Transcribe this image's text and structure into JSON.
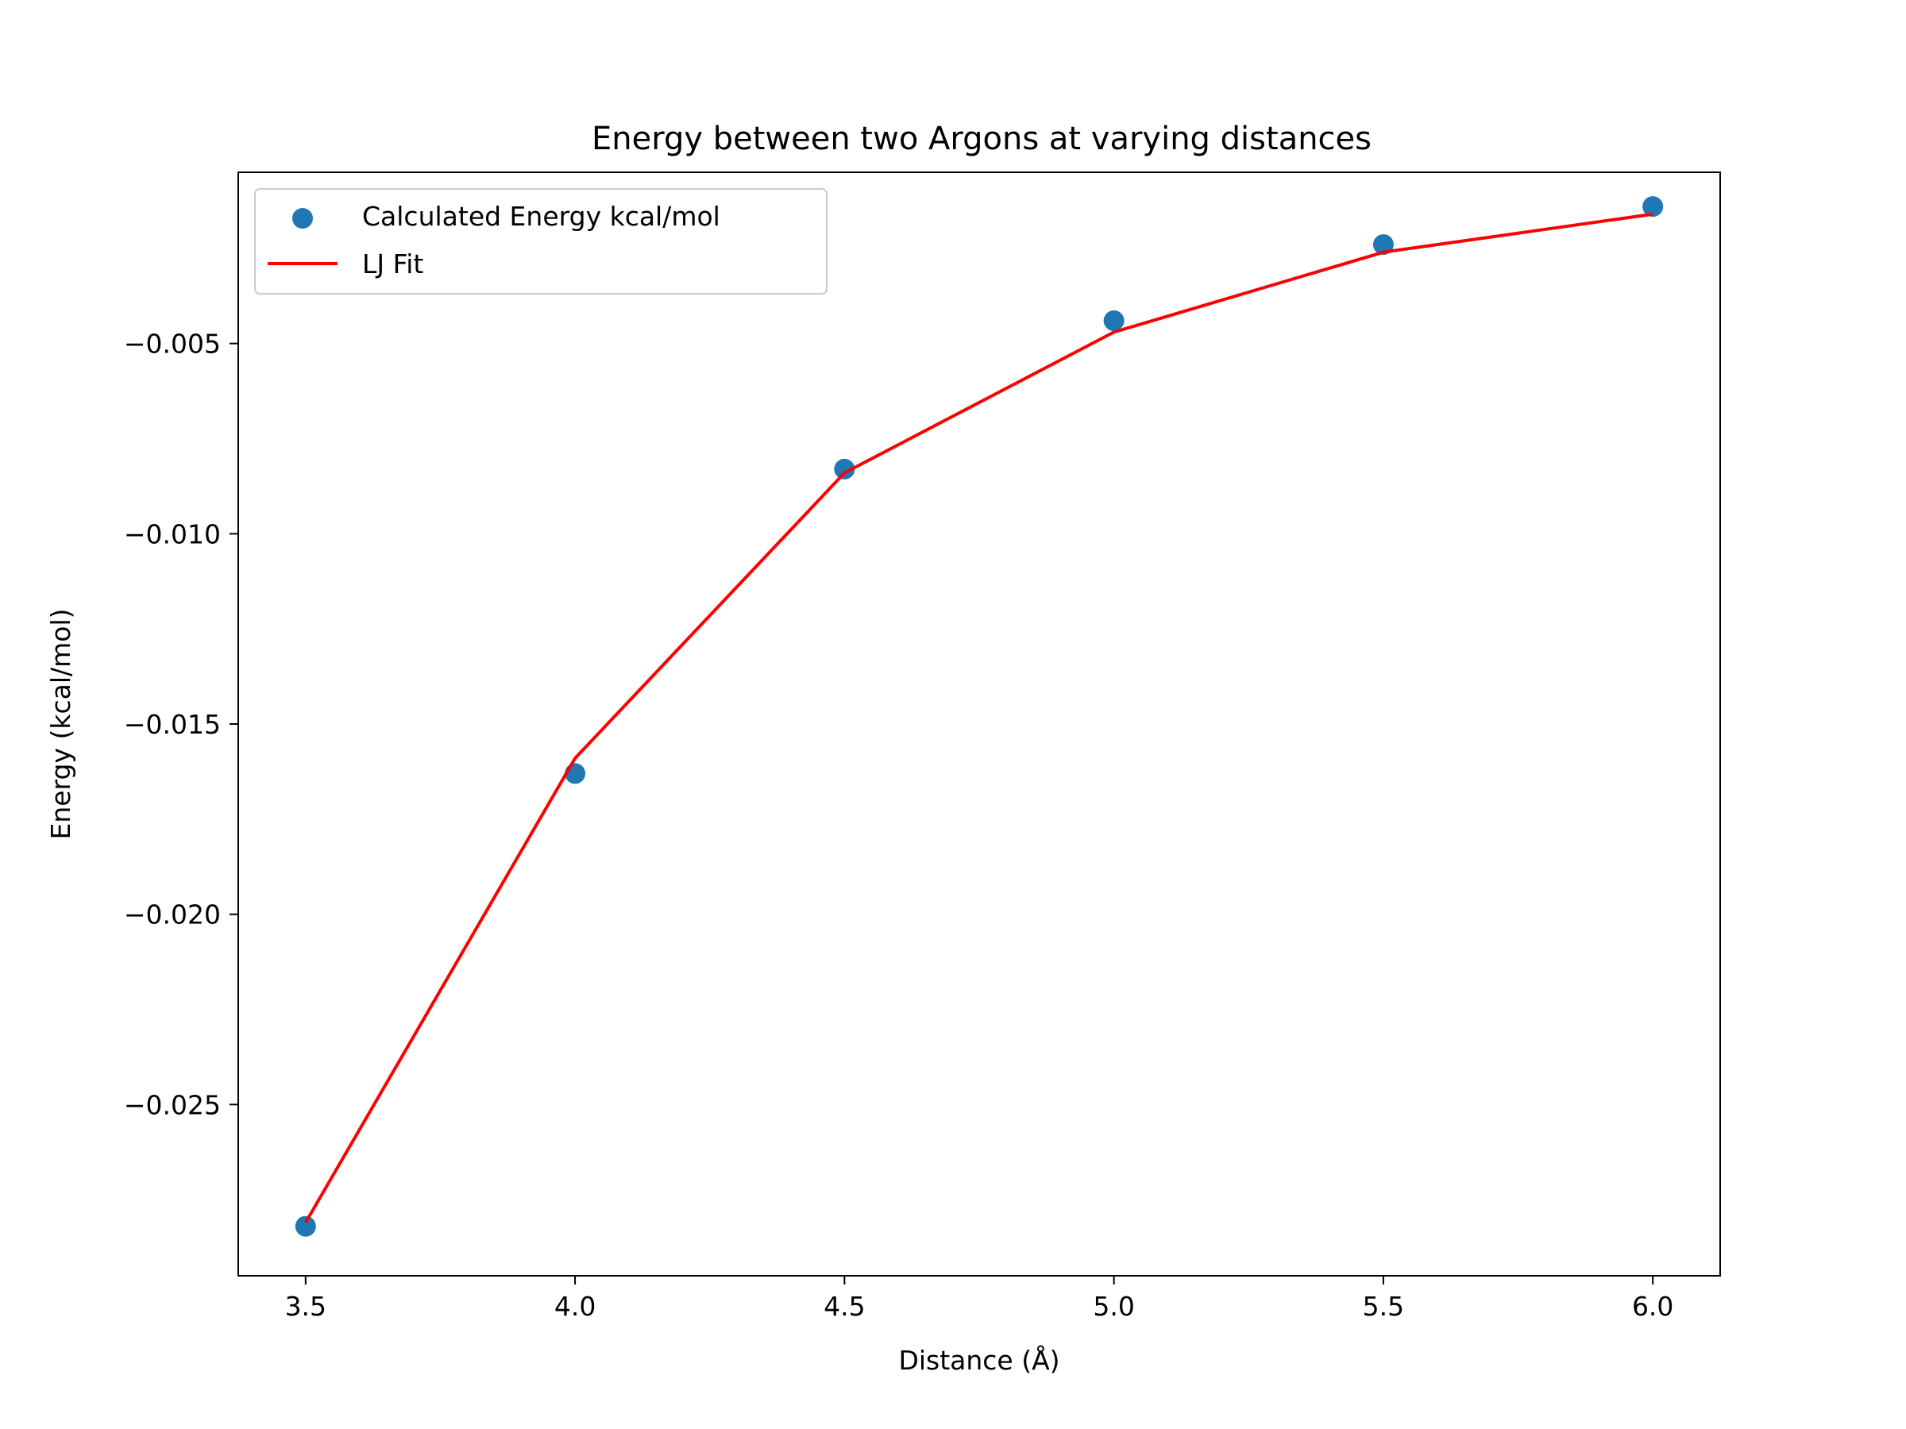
{
  "chart_data": {
    "type": "scatter",
    "title": "Energy between two Argons at varying distances",
    "xlabel": "Distance (Å)",
    "ylabel": "Energy (kcal/mol)",
    "xlim": [
      3.375,
      6.125
    ],
    "ylim": [
      -0.0295,
      -0.0005
    ],
    "xticks": [
      3.5,
      4.0,
      4.5,
      5.0,
      5.5,
      6.0
    ],
    "xtick_labels": [
      "3.5",
      "4.0",
      "4.5",
      "5.0",
      "5.5",
      "6.0"
    ],
    "yticks": [
      -0.005,
      -0.01,
      -0.015,
      -0.02,
      -0.025
    ],
    "ytick_labels": [
      "−0.005",
      "−0.010",
      "−0.015",
      "−0.020",
      "−0.025"
    ],
    "grid": false,
    "legend_position": "top-left",
    "series": [
      {
        "name": "Calculated Energy kcal/mol",
        "kind": "scatter",
        "color": "#1f77b4",
        "x": [
          3.5,
          4.0,
          4.5,
          5.0,
          5.5,
          6.0
        ],
        "y": [
          -0.0282,
          -0.0163,
          -0.0083,
          -0.0044,
          -0.0024,
          -0.0014
        ]
      },
      {
        "name": "LJ Fit",
        "kind": "line",
        "color": "#ff0000",
        "x": [
          3.5,
          4.0,
          4.5,
          5.0,
          5.5,
          6.0
        ],
        "y": [
          -0.0281,
          -0.0159,
          -0.0084,
          -0.0047,
          -0.0026,
          -0.0016
        ]
      }
    ]
  }
}
